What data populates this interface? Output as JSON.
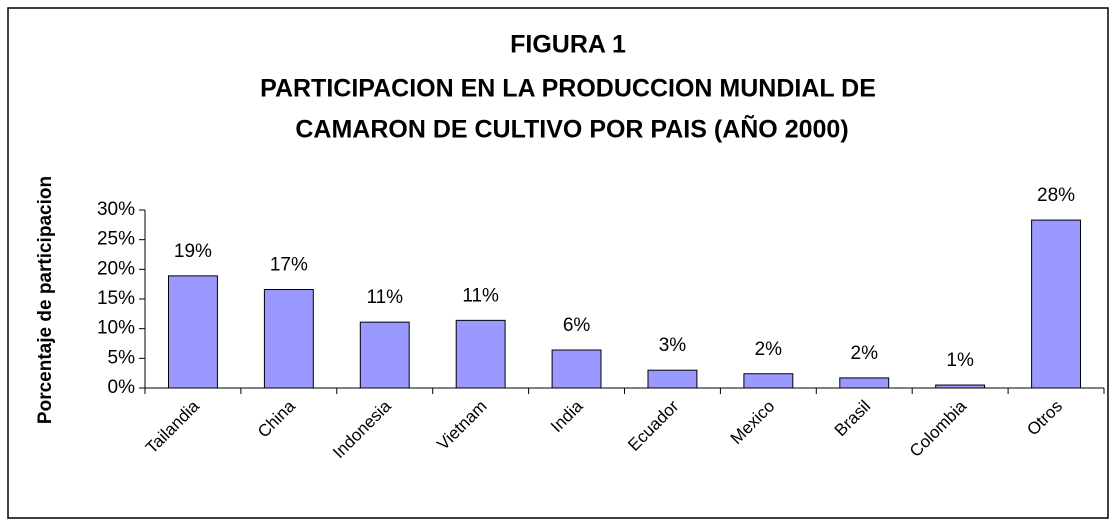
{
  "chart_data": {
    "type": "bar",
    "title": [
      "FIGURA 1",
      "PARTICIPACION EN LA PRODUCCION MUNDIAL DE",
      "CAMARON DE CULTIVO POR PAIS (AÑO 2000)"
    ],
    "y_label": "Porcentaje de participacion",
    "categories": [
      "Tailandia",
      "China",
      "Indonesia",
      "Vietnam",
      "India",
      "Ecuador",
      "Mexico",
      "Brasil",
      "Colombia",
      "Otros"
    ],
    "values": [
      18.9,
      16.6,
      11.1,
      11.4,
      6.4,
      3.0,
      2.4,
      1.7,
      0.5,
      28.3
    ],
    "value_labels": [
      "19%",
      "17%",
      "11%",
      "11%",
      "6%",
      "3%",
      "2%",
      "2%",
      "1%",
      "28%"
    ],
    "color": "#9999ff",
    "ylim": [
      0,
      30
    ],
    "yticks": [
      {
        "value": 0,
        "label": "0%"
      },
      {
        "value": 5,
        "label": "5%"
      },
      {
        "value": 10,
        "label": "10%"
      },
      {
        "value": 15,
        "label": "15%"
      },
      {
        "value": 20,
        "label": "20%"
      },
      {
        "value": 25,
        "label": "25%"
      },
      {
        "value": 30,
        "label": "30%"
      }
    ],
    "grid": false
  }
}
